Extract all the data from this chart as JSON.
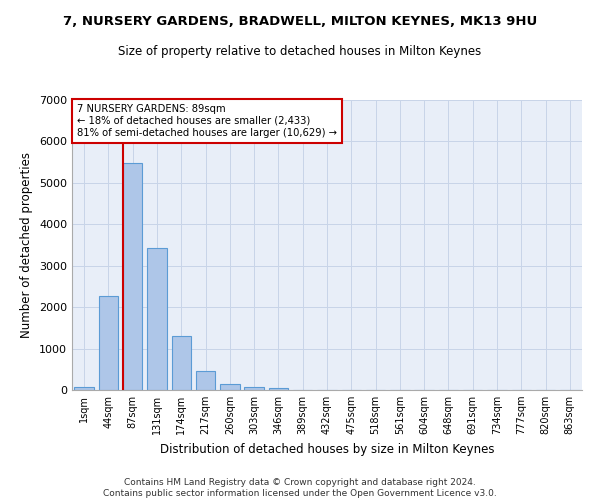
{
  "title1": "7, NURSERY GARDENS, BRADWELL, MILTON KEYNES, MK13 9HU",
  "title2": "Size of property relative to detached houses in Milton Keynes",
  "xlabel": "Distribution of detached houses by size in Milton Keynes",
  "ylabel": "Number of detached properties",
  "footnote1": "Contains HM Land Registry data © Crown copyright and database right 2024.",
  "footnote2": "Contains public sector information licensed under the Open Government Licence v3.0.",
  "bar_labels": [
    "1sqm",
    "44sqm",
    "87sqm",
    "131sqm",
    "174sqm",
    "217sqm",
    "260sqm",
    "303sqm",
    "346sqm",
    "389sqm",
    "432sqm",
    "475sqm",
    "518sqm",
    "561sqm",
    "604sqm",
    "648sqm",
    "691sqm",
    "734sqm",
    "777sqm",
    "820sqm",
    "863sqm"
  ],
  "bar_values": [
    80,
    2270,
    5470,
    3430,
    1310,
    460,
    155,
    80,
    45,
    0,
    0,
    0,
    0,
    0,
    0,
    0,
    0,
    0,
    0,
    0,
    0
  ],
  "bar_color": "#aec6e8",
  "bar_edge_color": "#5b9bd5",
  "grid_color": "#c8d4e8",
  "bg_color": "#e8eef8",
  "annotation_box_color": "#cc0000",
  "property_line_x": 2,
  "property_line_color": "#cc0000",
  "annotation_text1": "7 NURSERY GARDENS: 89sqm",
  "annotation_text2": "← 18% of detached houses are smaller (2,433)",
  "annotation_text3": "81% of semi-detached houses are larger (10,629) →",
  "ylim": [
    0,
    7000
  ],
  "yticks": [
    0,
    1000,
    2000,
    3000,
    4000,
    5000,
    6000,
    7000
  ]
}
